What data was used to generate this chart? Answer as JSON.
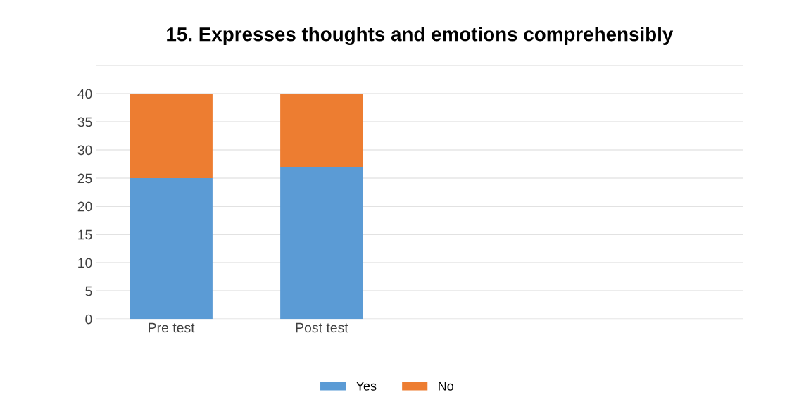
{
  "chart_data": {
    "type": "bar",
    "stacked": true,
    "title": "15. Expresses thoughts and emotions comprehensibly",
    "categories": [
      "Pre test",
      "Post test"
    ],
    "series": [
      {
        "name": "Yes",
        "color": "#5b9bd5",
        "values": [
          25,
          27
        ]
      },
      {
        "name": "No",
        "color": "#ed7d31",
        "values": [
          15,
          13
        ]
      }
    ],
    "ylim": [
      0,
      45
    ],
    "yticks": [
      0,
      5,
      10,
      15,
      20,
      25,
      30,
      35,
      40,
      {
        "value": 45,
        "label": null
      }
    ],
    "grid": "y",
    "legend": "bottom"
  }
}
